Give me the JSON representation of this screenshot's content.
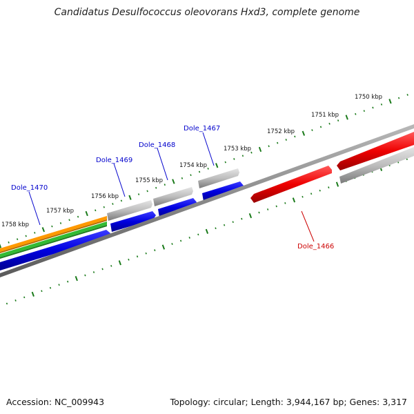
{
  "title": "Candidatus Desulfococcus oleovorans Hxd3, complete genome",
  "footer": {
    "accession": "Accession: NC_009943",
    "summary": "Topology: circular; Length: 3,944,167 bp; Genes: 3,317"
  },
  "colors": {
    "tick": "#1a7a1a",
    "backbone": "#808080",
    "forward_cds": "#0000ee",
    "forward_gene": "#b0b0b0",
    "reverse_cds": "#ee0000",
    "orange_track": "#ff9900",
    "green_track": "#33bb33",
    "label_blue": "#0000cc",
    "label_red": "#cc0000"
  },
  "ticks": [
    {
      "kbp": 1750,
      "label": "1750 kbp"
    },
    {
      "kbp": 1751,
      "label": "1751 kbp"
    },
    {
      "kbp": 1752,
      "label": "1752 kbp"
    },
    {
      "kbp": 1753,
      "label": "1753 kbp"
    },
    {
      "kbp": 1754,
      "label": "1754 kbp"
    },
    {
      "kbp": 1755,
      "label": "1755 kbp"
    },
    {
      "kbp": 1756,
      "label": "1756 kbp"
    },
    {
      "kbp": 1757,
      "label": "1757 kbp"
    },
    {
      "kbp": 1758,
      "label": "1758 kbp"
    }
  ],
  "genes": [
    {
      "name": "Dole_1470",
      "color": "blue"
    },
    {
      "name": "Dole_1469",
      "color": "blue"
    },
    {
      "name": "Dole_1468",
      "color": "blue"
    },
    {
      "name": "Dole_1467",
      "color": "blue"
    },
    {
      "name": "Dole_1466",
      "color": "red"
    }
  ]
}
